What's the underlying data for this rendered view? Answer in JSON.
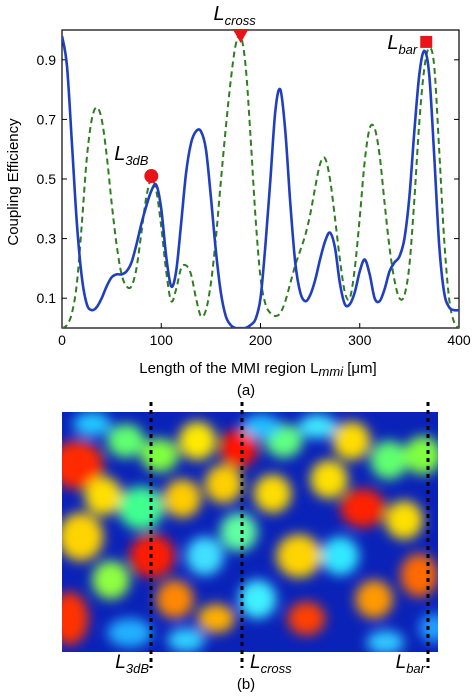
{
  "chart_data": [
    {
      "panel": "(a)",
      "type": "line",
      "xlabel": "Length of the MMI region L",
      "xlabel_sub": "mmi",
      "xlabel_unit": "[μm]",
      "ylabel": "Coupling Efficiency",
      "xlim": [
        0,
        400
      ],
      "ylim": [
        0,
        1.0
      ],
      "xticks": [
        0,
        100,
        200,
        300,
        400
      ],
      "yticks": [
        0.1,
        0.3,
        0.5,
        0.7,
        0.9
      ],
      "grid": false,
      "legend": "none",
      "series": [
        {
          "color": "#1f3fbf",
          "style": "solid",
          "x": [
            0,
            5,
            10,
            15,
            20,
            25,
            30,
            35,
            40,
            45,
            50,
            55,
            60,
            65,
            70,
            75,
            80,
            85,
            90,
            95,
            100,
            105,
            110,
            115,
            120,
            125,
            130,
            135,
            140,
            145,
            150,
            155,
            160,
            165,
            170,
            175,
            180,
            185,
            190,
            195,
            200,
            205,
            210,
            215,
            220,
            225,
            230,
            235,
            240,
            245,
            250,
            255,
            260,
            265,
            270,
            275,
            280,
            285,
            290,
            295,
            300,
            305,
            310,
            315,
            320,
            325,
            330,
            335,
            340,
            345,
            350,
            355,
            360,
            365,
            370,
            375,
            380,
            385,
            390,
            395,
            400
          ],
          "y": [
            0.98,
            0.88,
            0.62,
            0.35,
            0.17,
            0.08,
            0.06,
            0.07,
            0.1,
            0.14,
            0.17,
            0.18,
            0.18,
            0.19,
            0.22,
            0.28,
            0.35,
            0.41,
            0.46,
            0.48,
            0.4,
            0.24,
            0.14,
            0.19,
            0.35,
            0.52,
            0.62,
            0.66,
            0.66,
            0.6,
            0.44,
            0.26,
            0.12,
            0.04,
            0.01,
            0.0,
            0.0,
            0.0,
            0.01,
            0.03,
            0.1,
            0.28,
            0.5,
            0.73,
            0.8,
            0.66,
            0.42,
            0.22,
            0.12,
            0.09,
            0.11,
            0.16,
            0.23,
            0.29,
            0.32,
            0.27,
            0.15,
            0.08,
            0.08,
            0.12,
            0.19,
            0.23,
            0.18,
            0.1,
            0.09,
            0.13,
            0.19,
            0.22,
            0.24,
            0.3,
            0.44,
            0.66,
            0.85,
            0.93,
            0.85,
            0.58,
            0.28,
            0.12,
            0.07,
            0.06,
            0.06
          ]
        },
        {
          "color": "#2e7d1f",
          "style": "dashed",
          "x": [
            0,
            5,
            10,
            15,
            20,
            25,
            30,
            35,
            40,
            45,
            50,
            55,
            60,
            65,
            70,
            75,
            80,
            85,
            90,
            95,
            100,
            105,
            110,
            115,
            120,
            125,
            130,
            135,
            140,
            145,
            150,
            155,
            160,
            165,
            170,
            175,
            180,
            185,
            190,
            195,
            200,
            205,
            210,
            215,
            220,
            225,
            230,
            235,
            240,
            245,
            250,
            255,
            260,
            265,
            270,
            275,
            280,
            285,
            290,
            295,
            300,
            305,
            310,
            315,
            320,
            325,
            330,
            335,
            340,
            345,
            350,
            355,
            360,
            365,
            370,
            375,
            380,
            385,
            390,
            395,
            400
          ],
          "y": [
            0.0,
            0.01,
            0.05,
            0.15,
            0.35,
            0.57,
            0.7,
            0.74,
            0.7,
            0.58,
            0.42,
            0.28,
            0.18,
            0.14,
            0.14,
            0.2,
            0.32,
            0.44,
            0.5,
            0.46,
            0.34,
            0.19,
            0.09,
            0.13,
            0.2,
            0.21,
            0.18,
            0.1,
            0.04,
            0.06,
            0.15,
            0.3,
            0.49,
            0.67,
            0.83,
            0.95,
            0.98,
            0.88,
            0.64,
            0.37,
            0.17,
            0.08,
            0.05,
            0.04,
            0.05,
            0.09,
            0.15,
            0.21,
            0.26,
            0.31,
            0.38,
            0.47,
            0.55,
            0.57,
            0.5,
            0.37,
            0.23,
            0.12,
            0.1,
            0.2,
            0.37,
            0.56,
            0.67,
            0.67,
            0.58,
            0.42,
            0.27,
            0.16,
            0.1,
            0.11,
            0.21,
            0.43,
            0.69,
            0.87,
            0.94,
            0.88,
            0.6,
            0.3,
            0.1,
            0.02,
            0.0
          ]
        }
      ],
      "markers": [
        {
          "label": "L",
          "sub": "3dB",
          "x": 90,
          "y": 0.51,
          "shape": "circle",
          "color": "#e8141c"
        },
        {
          "label": "L",
          "sub": "cross",
          "x": 180,
          "y": 0.98,
          "shape": "triangle-down",
          "color": "#e8141c"
        },
        {
          "label": "L",
          "sub": "bar",
          "x": 367,
          "y": 0.96,
          "shape": "square",
          "color": "#e8141c"
        }
      ]
    },
    {
      "panel": "(b)",
      "type": "heatmap",
      "colormap": "jet",
      "markers": [
        {
          "label": "L",
          "sub": "3dB"
        },
        {
          "label": "L",
          "sub": "cross"
        },
        {
          "label": "L",
          "sub": "bar"
        }
      ]
    }
  ]
}
